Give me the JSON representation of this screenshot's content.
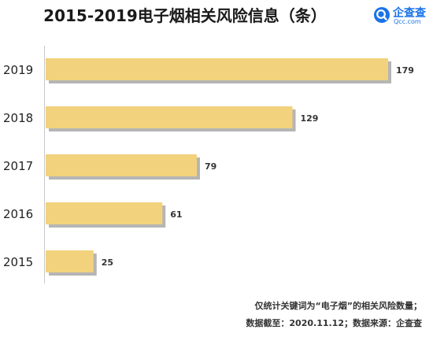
{
  "header": {
    "title": "2015-2019电子烟相关风险信息（条）"
  },
  "logo": {
    "name_cn": "企查查",
    "name_en": "Qcc.com",
    "icon": "qcc-magnifier-logo"
  },
  "footnotes": {
    "line1": "仅统计关键词为“电子烟”的相关风险数量；",
    "line2": "数据截至：2020.11.12；数据来源：企查查"
  },
  "colors": {
    "bar": "#f2d27c",
    "shadow": "#b5b5b5",
    "accent": "#1a73e8"
  },
  "chart_data": {
    "type": "bar",
    "orientation": "horizontal",
    "categories": [
      "2019",
      "2018",
      "2017",
      "2016",
      "2015"
    ],
    "values": [
      179,
      129,
      79,
      61,
      25
    ],
    "title": "2015-2019电子烟相关风险信息（条）",
    "xlabel": "",
    "ylabel": "",
    "data_labels": true,
    "grid": false
  }
}
